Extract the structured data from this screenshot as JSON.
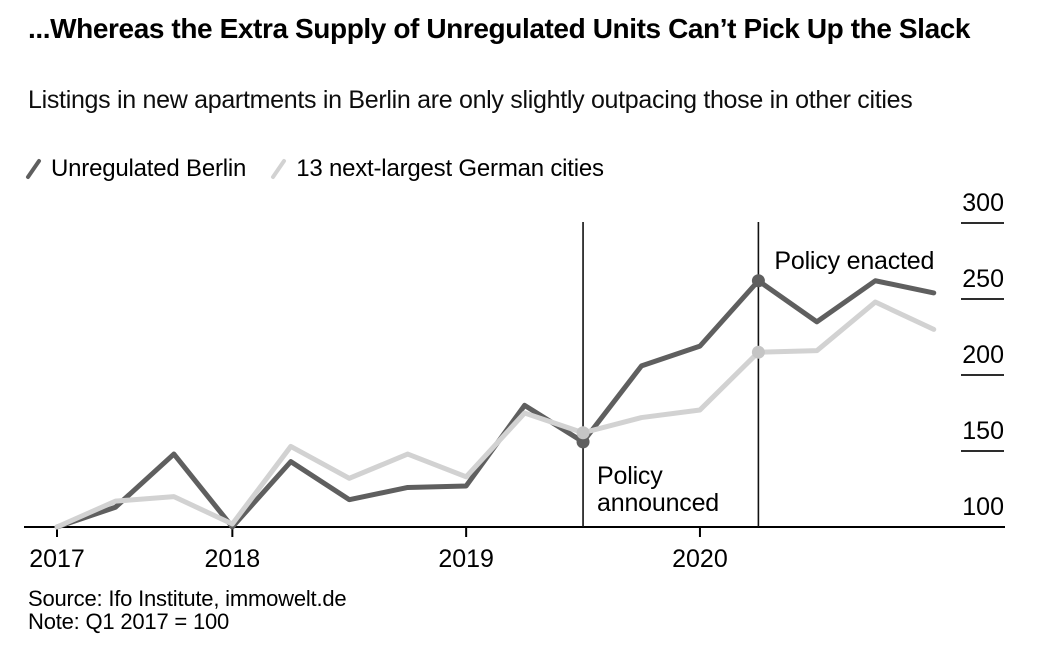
{
  "header": {
    "title": "...Whereas the Extra Supply of Unregulated Units Can’t Pick Up the Slack",
    "subtitle": "Listings in new apartments in Berlin are only slightly outpacing those in other cities"
  },
  "legend": {
    "items": [
      {
        "label": "Unregulated Berlin",
        "color": "#5f5f5f"
      },
      {
        "label": "13 next-largest German cities",
        "color": "#d2d2d2"
      }
    ]
  },
  "chart_data": {
    "type": "line",
    "title": "Listings in new apartments, index (Q1 2017 = 100)",
    "x_axis": {
      "tick_labels": [
        "2017",
        "2018",
        "2019",
        "2020"
      ],
      "tick_point_indices": [
        0,
        3,
        7,
        11
      ]
    },
    "y_axis": {
      "ticks": [
        100,
        150,
        200,
        250,
        300
      ],
      "range": [
        100,
        300
      ],
      "side": "right"
    },
    "series": [
      {
        "name": "Unregulated Berlin",
        "color": "#5f5f5f",
        "marker_color": "#5f5f5f",
        "values": [
          100,
          113,
          148,
          100,
          143,
          118,
          126,
          127,
          180,
          156,
          206,
          219,
          262,
          235,
          262,
          254
        ]
      },
      {
        "name": "13 next-largest German cities",
        "color": "#d2d2d2",
        "marker_color": "#c5c5c5",
        "values": [
          100,
          117,
          120,
          102,
          153,
          132,
          148,
          133,
          175,
          162,
          172,
          177,
          215,
          216,
          248,
          230
        ]
      }
    ],
    "annotations": [
      {
        "label": "Policy announced",
        "x_index": 9
      },
      {
        "label": "Policy enacted",
        "x_index": 12
      }
    ]
  },
  "footer": {
    "source": "Source: Ifo Institute, immowelt.de",
    "note": "Note: Q1 2017 = 100"
  }
}
